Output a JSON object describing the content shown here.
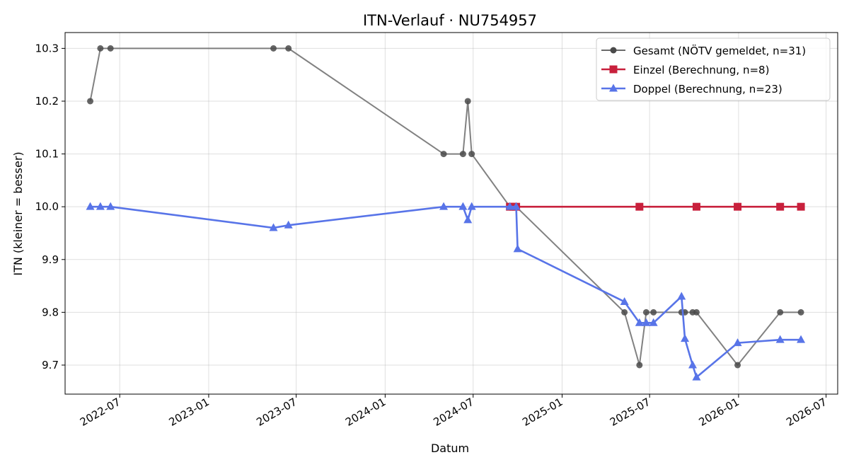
{
  "chart_data": {
    "type": "line",
    "title": "ITN-Verlauf · NU754957",
    "xlabel": "Datum",
    "ylabel": "ITN  (kleiner = besser)",
    "x_type": "date",
    "xlim": [
      "2022-03-10",
      "2026-07-25"
    ],
    "ylim": [
      9.645,
      10.33
    ],
    "x_ticks": [
      "2022-07-01",
      "2023-01-01",
      "2023-07-01",
      "2024-01-01",
      "2024-07-01",
      "2025-01-01",
      "2025-07-01",
      "2026-01-01",
      "2026-07-01"
    ],
    "x_tick_labels": [
      "2022-07",
      "2023-01",
      "2023-07",
      "2024-01",
      "2024-07",
      "2025-01",
      "2025-07",
      "2026-01",
      "2026-07"
    ],
    "y_ticks": [
      9.7,
      9.8,
      9.9,
      10.0,
      10.1,
      10.2,
      10.3
    ],
    "y_tick_labels": [
      "9.7",
      "9.8",
      "9.9",
      "10.0",
      "10.1",
      "10.2",
      "10.3"
    ],
    "grid": true,
    "legend_position": "top-right",
    "series": [
      {
        "name": "Gesamt (NÖTV gemeldet, n=31)",
        "color": "#6b6b6b",
        "marker": "circle",
        "points": [
          [
            "2022-05-01",
            10.2
          ],
          [
            "2022-05-22",
            10.3
          ],
          [
            "2022-06-12",
            10.3
          ],
          [
            "2023-05-15",
            10.3
          ],
          [
            "2023-06-15",
            10.3
          ],
          [
            "2024-05-01",
            10.1
          ],
          [
            "2024-06-10",
            10.1
          ],
          [
            "2024-06-20",
            10.2
          ],
          [
            "2024-06-28",
            10.1
          ],
          [
            "2024-09-15",
            10.0
          ],
          [
            "2024-09-22",
            10.0
          ],
          [
            "2024-09-28",
            10.0
          ],
          [
            "2025-05-10",
            9.8
          ],
          [
            "2025-06-10",
            9.7
          ],
          [
            "2025-06-24",
            9.8
          ],
          [
            "2025-07-09",
            9.8
          ],
          [
            "2025-09-05",
            9.8
          ],
          [
            "2025-09-12",
            9.8
          ],
          [
            "2025-09-28",
            9.8
          ],
          [
            "2025-10-06",
            9.8
          ],
          [
            "2025-12-30",
            9.7
          ],
          [
            "2026-03-28",
            9.8
          ],
          [
            "2026-05-10",
            9.8
          ]
        ]
      },
      {
        "name": "Einzel (Berechnung, n=8)",
        "color": "#c8203c",
        "marker": "square",
        "points": [
          [
            "2024-09-15",
            10.0
          ],
          [
            "2024-09-22",
            10.0
          ],
          [
            "2024-09-28",
            10.0
          ],
          [
            "2025-06-10",
            10.0
          ],
          [
            "2025-10-06",
            10.0
          ],
          [
            "2025-12-30",
            10.0
          ],
          [
            "2026-03-28",
            10.0
          ],
          [
            "2026-05-10",
            10.0
          ]
        ]
      },
      {
        "name": "Doppel (Berechnung, n=23)",
        "color": "#5874e8",
        "marker": "triangle",
        "points": [
          [
            "2022-05-01",
            10.0
          ],
          [
            "2022-05-22",
            10.0
          ],
          [
            "2022-06-12",
            10.0
          ],
          [
            "2023-05-15",
            9.96
          ],
          [
            "2023-06-15",
            9.965
          ],
          [
            "2024-05-01",
            10.0
          ],
          [
            "2024-06-10",
            10.0
          ],
          [
            "2024-06-20",
            9.975
          ],
          [
            "2024-06-28",
            10.0
          ],
          [
            "2024-09-15",
            10.0
          ],
          [
            "2024-09-28",
            10.0
          ],
          [
            "2024-10-01",
            9.92
          ],
          [
            "2025-05-10",
            9.82
          ],
          [
            "2025-06-10",
            9.78
          ],
          [
            "2025-06-24",
            9.78
          ],
          [
            "2025-07-09",
            9.78
          ],
          [
            "2025-09-05",
            9.83
          ],
          [
            "2025-09-12",
            9.75
          ],
          [
            "2025-09-28",
            9.7
          ],
          [
            "2025-10-06",
            9.677
          ],
          [
            "2025-12-30",
            9.742
          ],
          [
            "2026-03-28",
            9.748
          ],
          [
            "2026-05-10",
            9.748
          ]
        ]
      }
    ]
  }
}
